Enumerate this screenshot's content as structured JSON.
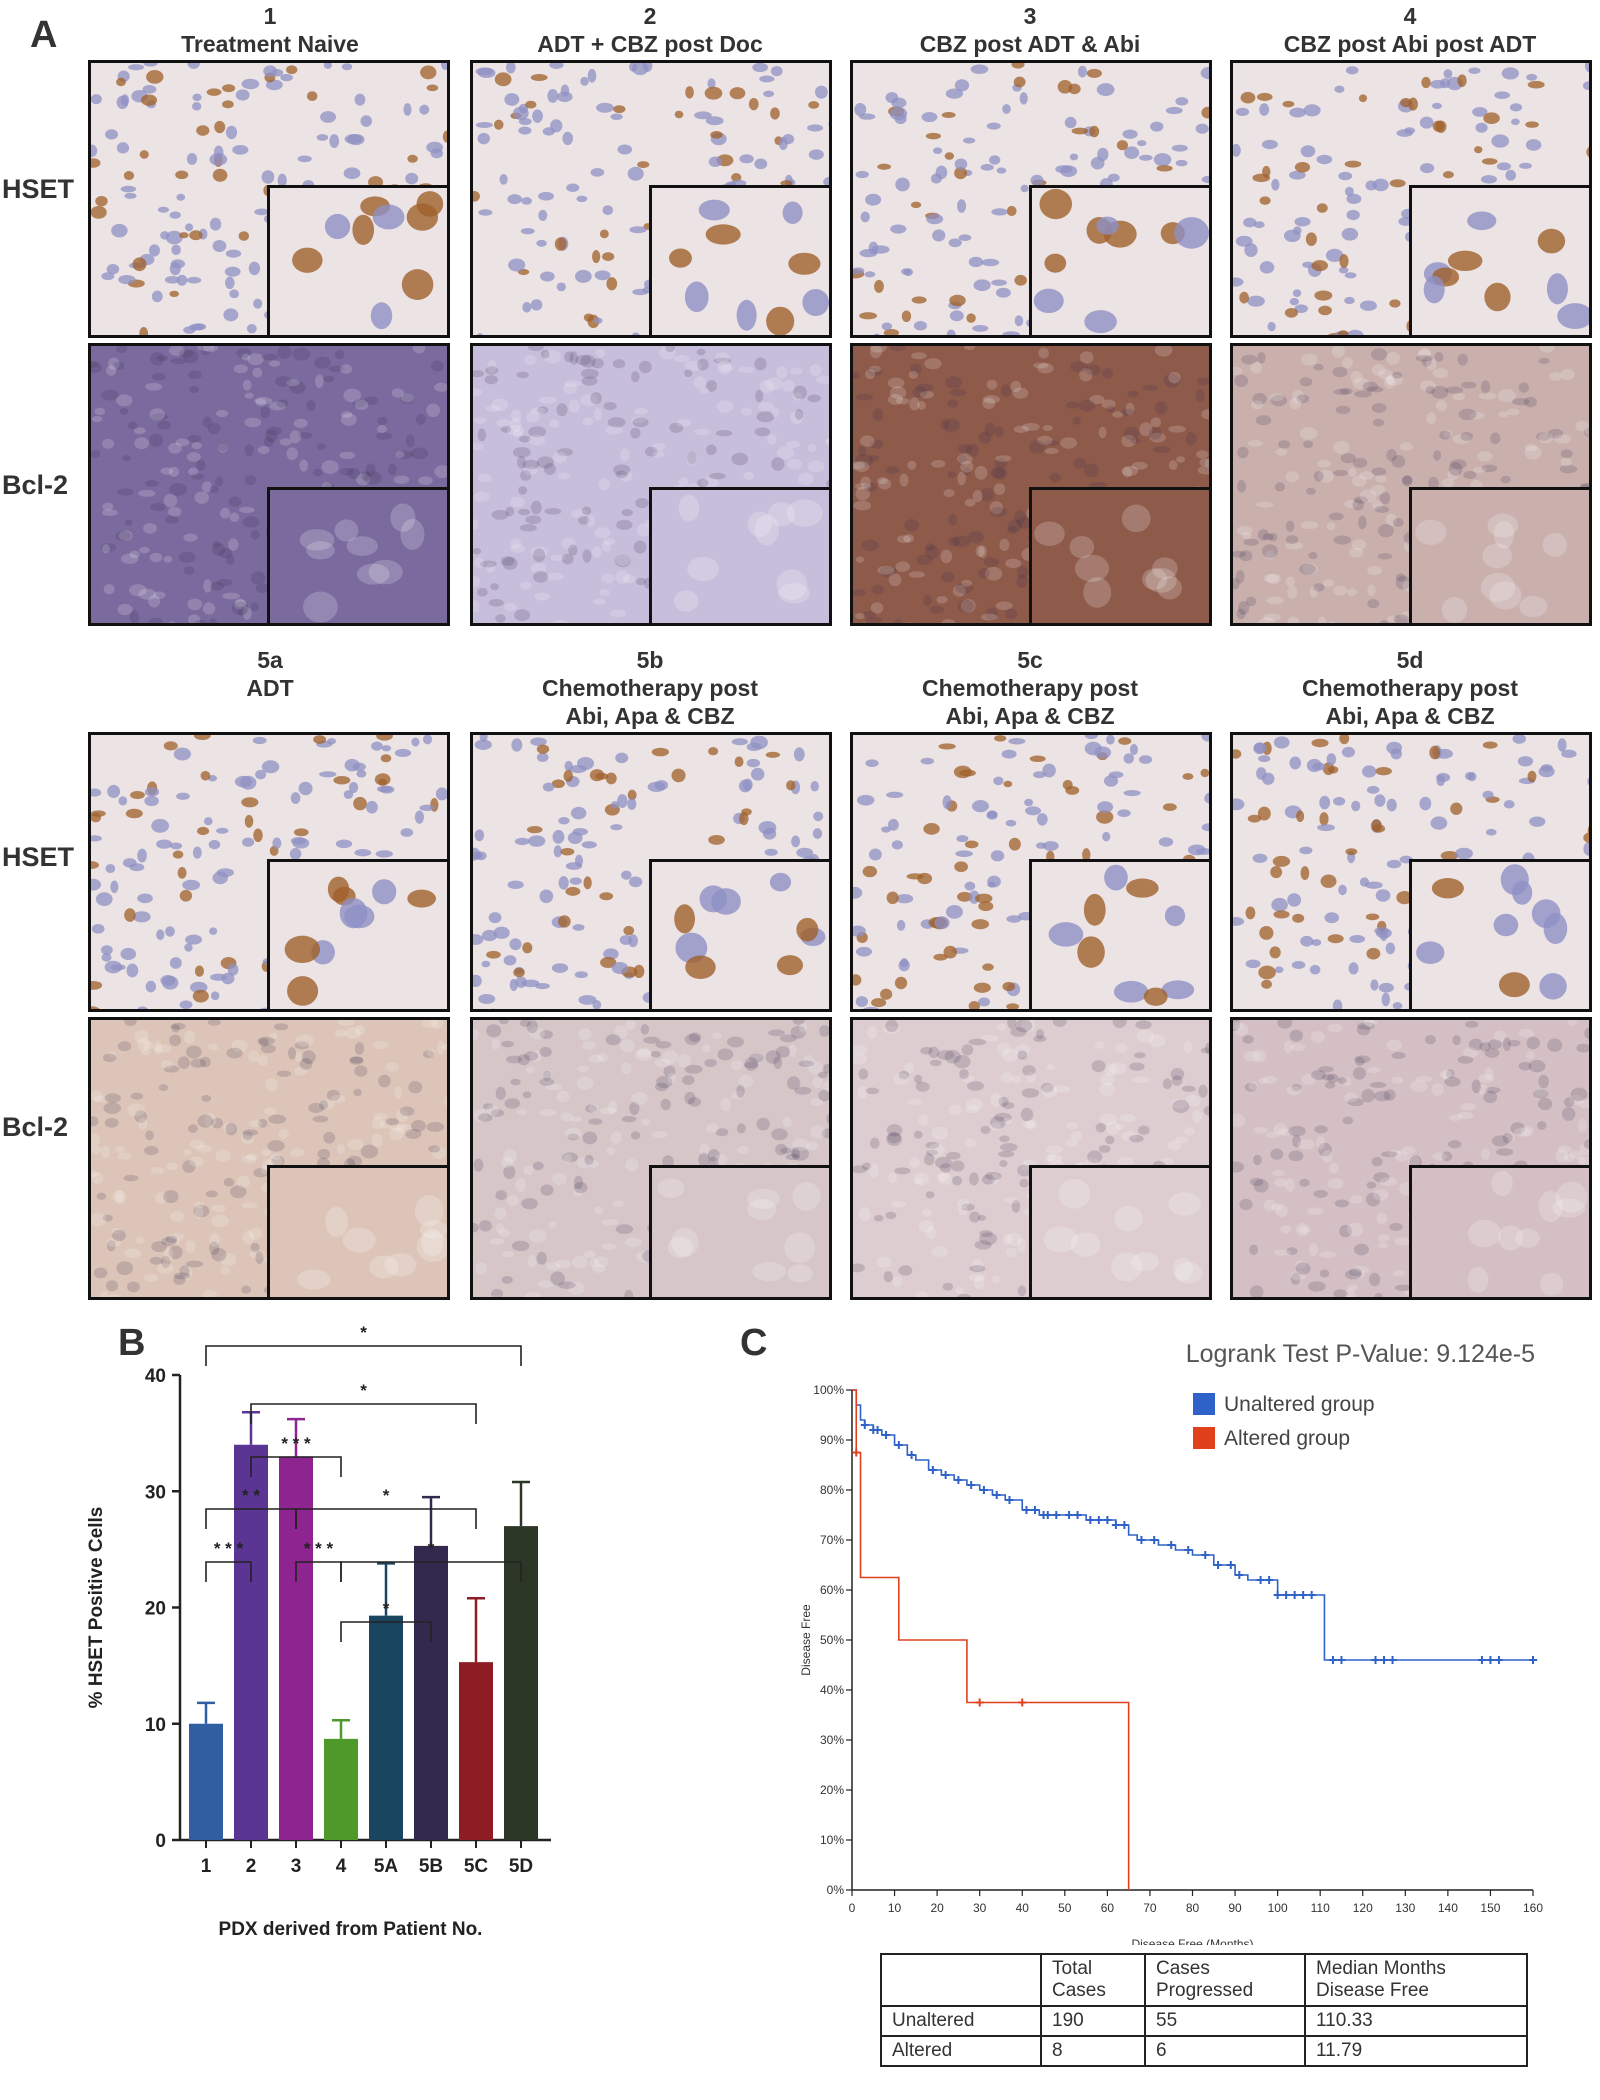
{
  "panel_letters": {
    "a": "A",
    "b": "B",
    "c": "C"
  },
  "row_labels": {
    "hset": "HSET",
    "bcl2": "Bcl-2"
  },
  "top_columns": [
    {
      "num": "1",
      "line1": "Treatment Naive",
      "line2": ""
    },
    {
      "num": "2",
      "line1": "ADT + CBZ post Doc",
      "line2": ""
    },
    {
      "num": "3",
      "line1": "CBZ post ADT & Abi",
      "line2": ""
    },
    {
      "num": "4",
      "line1": "CBZ post Abi post ADT",
      "line2": ""
    }
  ],
  "bottom_columns": [
    {
      "num": "5a",
      "line1": "ADT",
      "line2": ""
    },
    {
      "num": "5b",
      "line1": "Chemotherapy post",
      "line2": "Abi, Apa & CBZ"
    },
    {
      "num": "5c",
      "line1": "Chemotherapy post",
      "line2": "Abi, Apa & CBZ"
    },
    {
      "num": "5d",
      "line1": "Chemotherapy post",
      "line2": "Abi, Apa & CBZ"
    }
  ],
  "stain_colors": {
    "hset_bg": "#ece3e4",
    "hset_nucleus_brown": "#a0602a",
    "hset_nucleus_blue": "#8f90c4",
    "bcl2_1": "#7a6a9e",
    "bcl2_2": "#c7bedb",
    "bcl2_3": "#8e5a4a",
    "bcl2_4": "#c9b0ad",
    "bcl2_5a": "#dcc5b8",
    "bcl2_5b": "#d6c6c8",
    "bcl2_5c": "#ddcdd0",
    "bcl2_5d": "#d4c0c4"
  },
  "chart_data": [
    {
      "type": "bar",
      "title": "",
      "xlabel": "PDX derived from Patient No.",
      "ylabel": "% HSET Positive Cells",
      "ylim": [
        0,
        40
      ],
      "yticks": [
        "0",
        "10",
        "20",
        "30",
        "40"
      ],
      "categories": [
        "1",
        "2",
        "3",
        "4",
        "5A",
        "5B",
        "5C",
        "5D"
      ],
      "values": [
        10,
        34,
        33,
        8.7,
        19.3,
        25.3,
        15.3,
        27
      ],
      "errors": [
        1.8,
        2.8,
        3.2,
        1.6,
        4.5,
        4.2,
        5.5,
        3.8
      ],
      "colors": [
        "#2f5fa0",
        "#5b3594",
        "#8e2490",
        "#4d9a2a",
        "#1a4560",
        "#33284e",
        "#8e1c24",
        "#2c3626"
      ],
      "significance": [
        {
          "pair": [
            "1",
            "5D"
          ],
          "label": "*"
        },
        {
          "pair": [
            "2",
            "5C"
          ],
          "label": "*"
        },
        {
          "pair": [
            "2",
            "4"
          ],
          "label": "* * *"
        },
        {
          "pair": [
            "1",
            "3"
          ],
          "label": "* *"
        },
        {
          "pair": [
            "3",
            "5C"
          ],
          "label": "*"
        },
        {
          "pair": [
            "1",
            "2"
          ],
          "label": "* * *"
        },
        {
          "pair": [
            "3",
            "4"
          ],
          "label": "* * *"
        },
        {
          "pair": [
            "4",
            "5D"
          ],
          "label": "*"
        },
        {
          "pair": [
            "4",
            "5B"
          ],
          "label": "*"
        }
      ]
    },
    {
      "type": "line",
      "title": "Logrank Test P-Value: 9.124e-5",
      "xlabel": "Disease Free (Months)",
      "ylabel": "Disease Free",
      "xlim": [
        0,
        160
      ],
      "ylim": [
        0,
        100
      ],
      "xticks": [
        "0",
        "10",
        "20",
        "30",
        "40",
        "50",
        "60",
        "70",
        "80",
        "90",
        "100",
        "110",
        "120",
        "130",
        "140",
        "150",
        "160"
      ],
      "yticks": [
        "0%",
        "10%",
        "20%",
        "30%",
        "40%",
        "50%",
        "60%",
        "70%",
        "80%",
        "90%",
        "100%"
      ],
      "legend_position": "top-right",
      "series": [
        {
          "name": "Unaltered group",
          "color": "#2e62c8",
          "x": [
            0,
            1,
            2,
            3,
            5,
            7,
            10,
            13,
            15,
            18,
            21,
            24,
            27,
            30,
            33,
            36,
            40,
            44,
            47,
            50,
            55,
            62,
            65,
            67,
            72,
            76,
            80,
            85,
            90,
            93,
            100,
            110,
            111,
            120,
            140,
            161
          ],
          "y": [
            100,
            97,
            94,
            93,
            92,
            91,
            89,
            87,
            86,
            84,
            83,
            82,
            81,
            80,
            79,
            78,
            76,
            75,
            75,
            75,
            74,
            73,
            71,
            70,
            69,
            68,
            67,
            65,
            63,
            62,
            59,
            59,
            46,
            46,
            46,
            46
          ],
          "censor_x": [
            3,
            5,
            6,
            8,
            11,
            14,
            19,
            22,
            25,
            28,
            31,
            34,
            37,
            41,
            43,
            45,
            46,
            48,
            51,
            53,
            56,
            58,
            60,
            62,
            64,
            68,
            71,
            75,
            79,
            83,
            86,
            89,
            91,
            96,
            98,
            100,
            102,
            104,
            106,
            108,
            113,
            115,
            123,
            125,
            127,
            148,
            150,
            152,
            160
          ]
        },
        {
          "name": "Altered group",
          "color": "#e0401c",
          "x": [
            0,
            1,
            2,
            11,
            27,
            64.5,
            65
          ],
          "y": [
            100,
            87.5,
            62.5,
            50,
            37.5,
            37.5,
            0
          ],
          "censor_x": [
            1,
            30,
            40
          ]
        }
      ]
    }
  ],
  "km_table": {
    "header": [
      "",
      "Total\nCases",
      "Cases\nProgressed",
      "Median Months\nDisease Free"
    ],
    "rows": [
      [
        "Unaltered",
        "190",
        "55",
        "110.33"
      ],
      [
        "Altered",
        "8",
        "6",
        "11.79"
      ]
    ]
  }
}
